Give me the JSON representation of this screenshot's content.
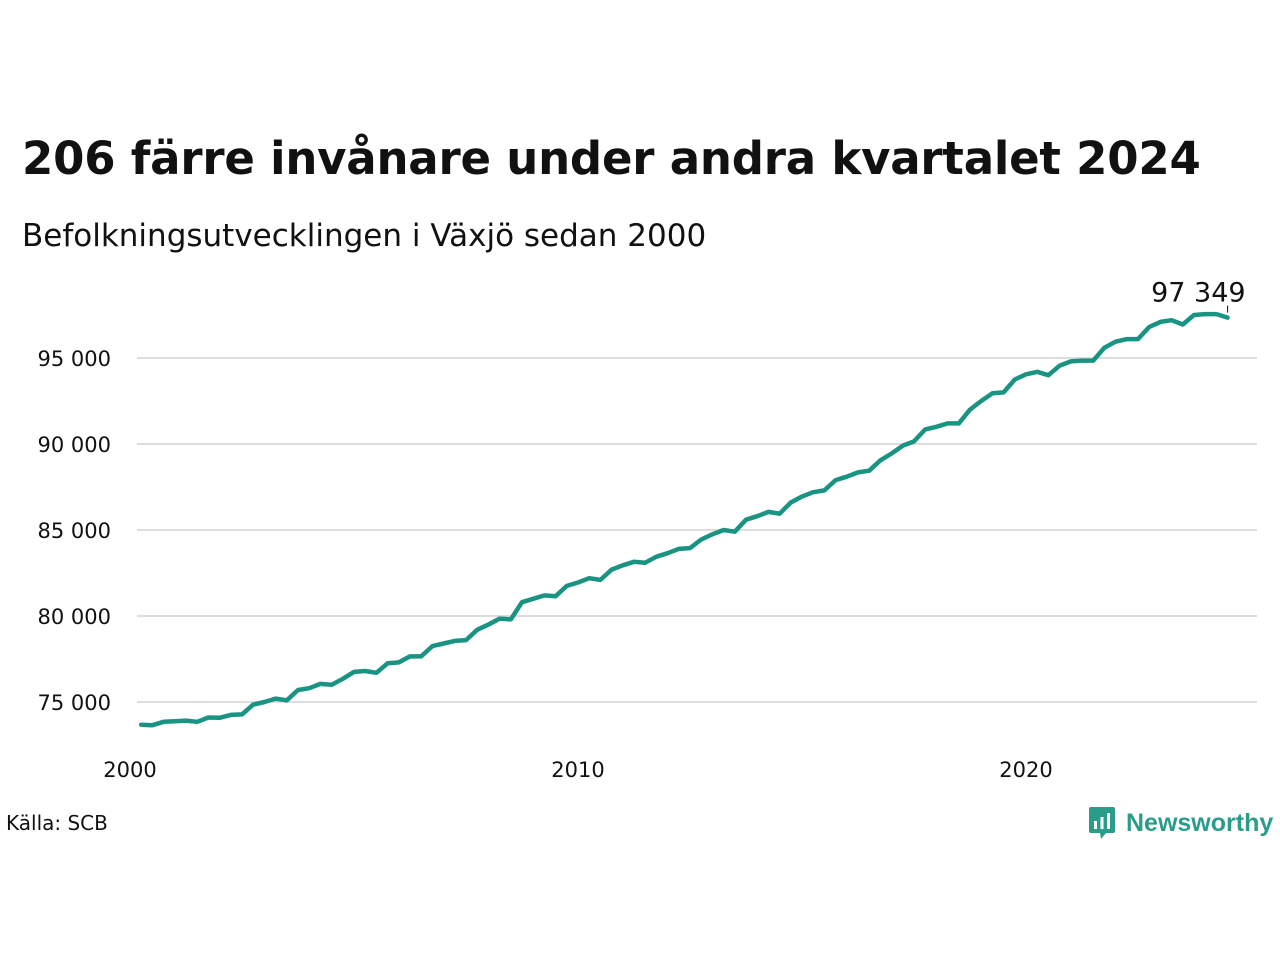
{
  "title": "206 färre invånare under andra kvartalet 2024",
  "subtitle": "Befolkningsutvecklingen i Växjö sedan 2000",
  "source": "Källa: SCB",
  "brand": {
    "name": "Newsworthy",
    "icon": "newsworthy-logo-icon",
    "color": "#2a9d8a"
  },
  "colors": {
    "line": "#1a9482",
    "grid": "#dddddd",
    "text": "#111111"
  },
  "chart_data": {
    "type": "line",
    "title": "206 färre invånare under andra kvartalet 2024",
    "subtitle": "Befolkningsutvecklingen i Växjö sedan 2000",
    "xlabel": "",
    "ylabel": "",
    "xlim": [
      2000,
      2025
    ],
    "ylim": [
      73000,
      98500
    ],
    "grid": true,
    "y_ticks": [
      75000,
      80000,
      85000,
      90000,
      95000
    ],
    "y_tick_labels": [
      "75 000",
      "80 000",
      "85 000",
      "90 000",
      "95 000"
    ],
    "x_ticks": [
      2000,
      2010,
      2020
    ],
    "x_tick_labels": [
      "2000",
      "2010",
      "2020"
    ],
    "end_label": "97 349",
    "series": [
      {
        "values": [
          [
            2000.25,
            73680
          ],
          [
            2000.5,
            73650
          ],
          [
            2000.75,
            73850
          ],
          [
            2001.0,
            73880
          ],
          [
            2001.25,
            73920
          ],
          [
            2001.5,
            73850
          ],
          [
            2001.75,
            74100
          ],
          [
            2002.0,
            74080
          ],
          [
            2002.25,
            74250
          ],
          [
            2002.5,
            74280
          ],
          [
            2002.75,
            74850
          ],
          [
            2003.0,
            75000
          ],
          [
            2003.25,
            75200
          ],
          [
            2003.5,
            75100
          ],
          [
            2003.75,
            75700
          ],
          [
            2004.0,
            75800
          ],
          [
            2004.25,
            76050
          ],
          [
            2004.5,
            76000
          ],
          [
            2004.75,
            76350
          ],
          [
            2005.0,
            76750
          ],
          [
            2005.25,
            76800
          ],
          [
            2005.5,
            76700
          ],
          [
            2005.75,
            77250
          ],
          [
            2006.0,
            77300
          ],
          [
            2006.25,
            77650
          ],
          [
            2006.5,
            77650
          ],
          [
            2006.75,
            78250
          ],
          [
            2007.0,
            78400
          ],
          [
            2007.25,
            78550
          ],
          [
            2007.5,
            78600
          ],
          [
            2007.75,
            79200
          ],
          [
            2008.0,
            79500
          ],
          [
            2008.25,
            79850
          ],
          [
            2008.5,
            79800
          ],
          [
            2008.75,
            80800
          ],
          [
            2009.0,
            81000
          ],
          [
            2009.25,
            81200
          ],
          [
            2009.5,
            81150
          ],
          [
            2009.75,
            81750
          ],
          [
            2010.0,
            81950
          ],
          [
            2010.25,
            82200
          ],
          [
            2010.5,
            82100
          ],
          [
            2010.75,
            82700
          ],
          [
            2011.0,
            82950
          ],
          [
            2011.25,
            83150
          ],
          [
            2011.5,
            83100
          ],
          [
            2011.75,
            83450
          ],
          [
            2012.0,
            83650
          ],
          [
            2012.25,
            83900
          ],
          [
            2012.5,
            83950
          ],
          [
            2012.75,
            84450
          ],
          [
            2013.0,
            84750
          ],
          [
            2013.25,
            85000
          ],
          [
            2013.5,
            84900
          ],
          [
            2013.75,
            85600
          ],
          [
            2014.0,
            85800
          ],
          [
            2014.25,
            86050
          ],
          [
            2014.5,
            85950
          ],
          [
            2014.75,
            86600
          ],
          [
            2015.0,
            86950
          ],
          [
            2015.25,
            87200
          ],
          [
            2015.5,
            87300
          ],
          [
            2015.75,
            87900
          ],
          [
            2016.0,
            88100
          ],
          [
            2016.25,
            88350
          ],
          [
            2016.5,
            88450
          ],
          [
            2016.75,
            89050
          ],
          [
            2017.0,
            89450
          ],
          [
            2017.25,
            89900
          ],
          [
            2017.5,
            90150
          ],
          [
            2017.75,
            90850
          ],
          [
            2018.0,
            91000
          ],
          [
            2018.25,
            91200
          ],
          [
            2018.5,
            91200
          ],
          [
            2018.75,
            92000
          ],
          [
            2019.0,
            92500
          ],
          [
            2019.25,
            92950
          ],
          [
            2019.5,
            93000
          ],
          [
            2019.75,
            93750
          ],
          [
            2020.0,
            94050
          ],
          [
            2020.25,
            94200
          ],
          [
            2020.5,
            94000
          ],
          [
            2020.75,
            94550
          ],
          [
            2021.0,
            94800
          ],
          [
            2021.25,
            94850
          ],
          [
            2021.5,
            94850
          ],
          [
            2021.75,
            95600
          ],
          [
            2022.0,
            95950
          ],
          [
            2022.25,
            96100
          ],
          [
            2022.5,
            96100
          ],
          [
            2022.75,
            96800
          ],
          [
            2023.0,
            97100
          ],
          [
            2023.25,
            97200
          ],
          [
            2023.5,
            96950
          ],
          [
            2023.75,
            97500
          ],
          [
            2024.0,
            97550
          ],
          [
            2024.25,
            97555
          ],
          [
            2024.5,
            97349
          ]
        ]
      }
    ]
  }
}
